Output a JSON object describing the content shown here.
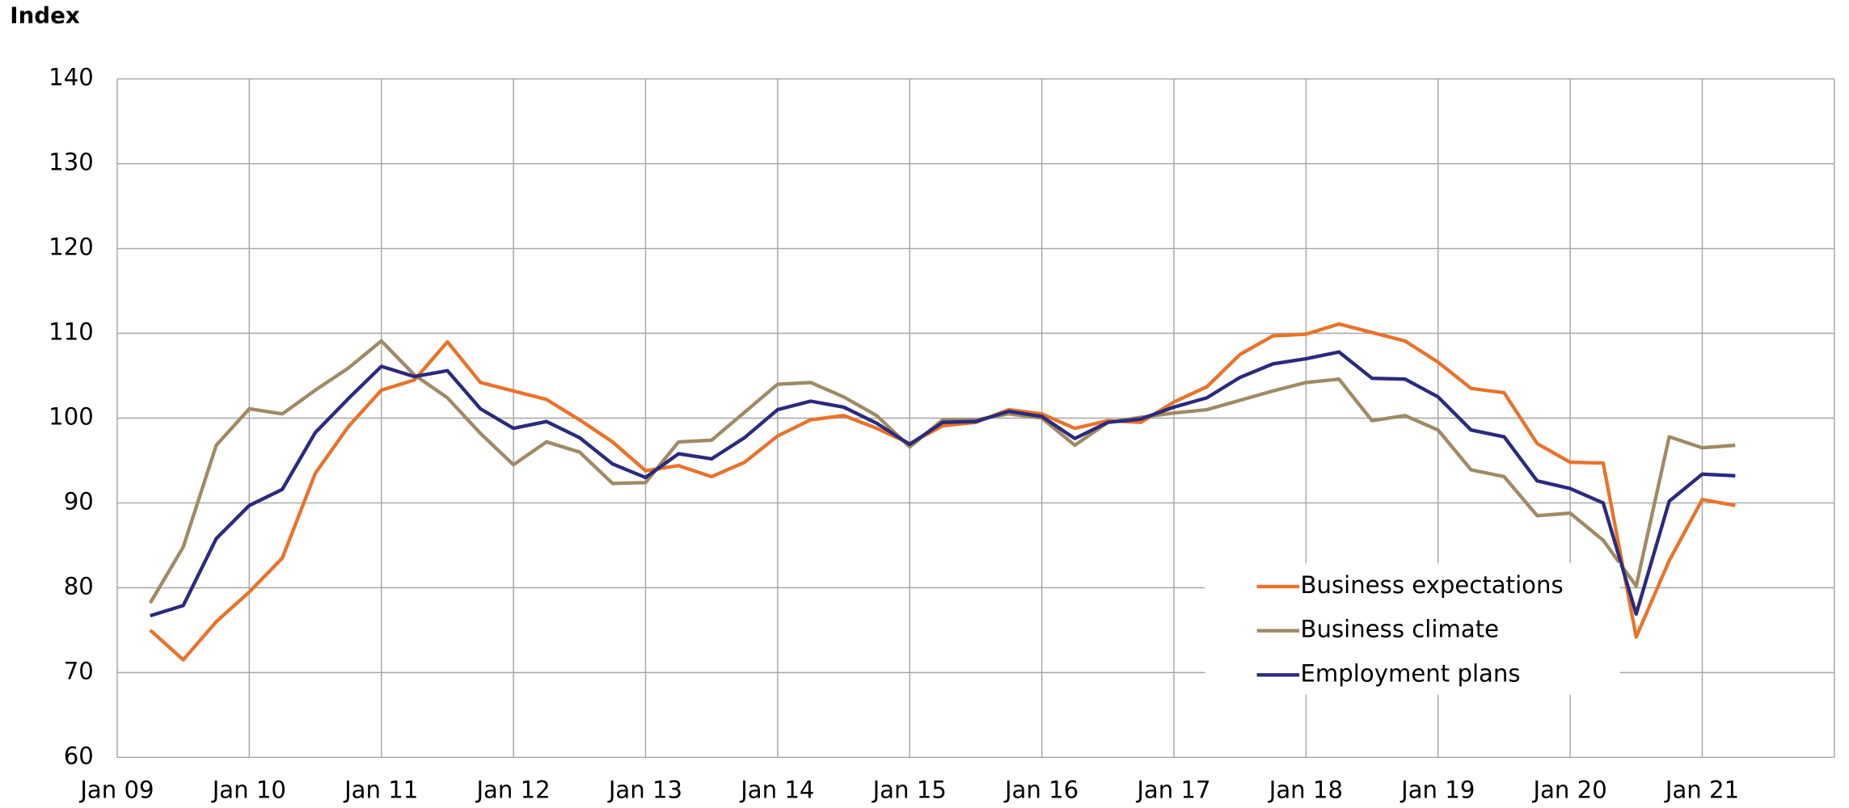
{
  "chart_data": {
    "type": "line",
    "ylabel": "Index",
    "x": [
      2009.25,
      2009.5,
      2009.75,
      2010,
      2010.25,
      2010.5,
      2010.75,
      2011,
      2011.25,
      2011.5,
      2011.75,
      2012,
      2012.25,
      2012.5,
      2012.75,
      2013,
      2013.25,
      2013.5,
      2013.75,
      2014,
      2014.25,
      2014.5,
      2014.75,
      2015,
      2015.25,
      2015.5,
      2015.75,
      2016,
      2016.25,
      2016.5,
      2016.75,
      2017,
      2017.25,
      2017.5,
      2017.75,
      2018,
      2018.25,
      2018.5,
      2018.75,
      2019,
      2019.25,
      2019.5,
      2019.75,
      2020,
      2020.25,
      2020.5,
      2020.75,
      2021,
      2021.25
    ],
    "series": [
      {
        "name": "Business expectations",
        "color": "#e8732a",
        "values": [
          75,
          71.5,
          76,
          79.5,
          83.5,
          93.5,
          99,
          103.3,
          104.5,
          109,
          104.2,
          103.2,
          102.2,
          99.8,
          97.2,
          93.8,
          94.4,
          93.1,
          94.8,
          97.9,
          99.8,
          100.3,
          98.8,
          97,
          99.1,
          99.5,
          101,
          100.5,
          98.8,
          99.7,
          99.5,
          101.9,
          103.7,
          107.5,
          109.7,
          109.9,
          111.1,
          110.1,
          109.1,
          106.6,
          103.5,
          103,
          97,
          94.8,
          94.7,
          74.2,
          83.2,
          90.4,
          89.7
        ]
      },
      {
        "name": "Business climate",
        "color": "#a08a64",
        "values": [
          78.2,
          84.8,
          96.8,
          101.1,
          100.5,
          103.3,
          105.9,
          109.1,
          105.1,
          102.4,
          98.2,
          94.5,
          97.2,
          96,
          92.3,
          92.4,
          97.2,
          97.4,
          100.7,
          104,
          104.2,
          102.5,
          100.3,
          96.6,
          99.8,
          99.8,
          100.5,
          100,
          96.8,
          99.5,
          100.1,
          100.6,
          101,
          102.1,
          103.2,
          104.2,
          104.6,
          99.7,
          100.3,
          98.6,
          93.9,
          93.1,
          88.5,
          88.8,
          85.6,
          80.2,
          97.8,
          96.5,
          96.8
        ]
      },
      {
        "name": "Employment plans",
        "color": "#2b2a7e",
        "values": [
          76.7,
          77.9,
          85.8,
          89.7,
          91.6,
          98.3,
          102.3,
          106.1,
          104.9,
          105.6,
          101.1,
          98.8,
          99.6,
          97.7,
          94.6,
          93,
          95.8,
          95.2,
          97.7,
          101,
          102,
          101.3,
          99.4,
          96.9,
          99.5,
          99.6,
          100.8,
          100.2,
          97.6,
          99.5,
          99.9,
          101.3,
          102.4,
          104.8,
          106.4,
          107,
          107.8,
          104.7,
          104.6,
          102.5,
          98.6,
          97.8,
          92.6,
          91.7,
          90,
          76.9,
          90.2,
          93.4,
          93.2
        ]
      }
    ],
    "xlim": [
      2009,
      2022
    ],
    "xticks": [
      {
        "value": 2009,
        "label": "Jan 09"
      },
      {
        "value": 2010,
        "label": "Jan 10"
      },
      {
        "value": 2011,
        "label": "Jan 11"
      },
      {
        "value": 2012,
        "label": "Jan 12"
      },
      {
        "value": 2013,
        "label": "Jan 13"
      },
      {
        "value": 2014,
        "label": "Jan 14"
      },
      {
        "value": 2015,
        "label": "Jan 15"
      },
      {
        "value": 2016,
        "label": "Jan 16"
      },
      {
        "value": 2017,
        "label": "Jan 17"
      },
      {
        "value": 2018,
        "label": "Jan 18"
      },
      {
        "value": 2019,
        "label": "Jan 19"
      },
      {
        "value": 2020,
        "label": "Jan 20"
      },
      {
        "value": 2021,
        "label": "Jan 21"
      }
    ],
    "ylim": [
      60,
      140
    ],
    "yticks": [
      60,
      70,
      80,
      90,
      100,
      110,
      120,
      130,
      140
    ],
    "grid": true,
    "legend": "lower right"
  }
}
